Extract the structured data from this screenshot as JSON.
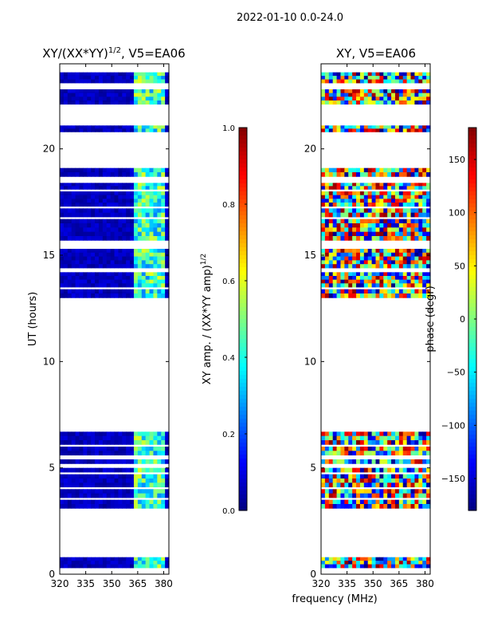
{
  "figure": {
    "suptitle": "2022-01-10 0.0-24.0",
    "xlabel": "frequency (MHz)"
  },
  "chart_data": [
    {
      "type": "heatmap",
      "title_main": "XY/(XX*YY)",
      "title_exp": "1/2",
      "title_tail": ", V5=EA06",
      "ylabel": "UT (hours)",
      "xlim": [
        320,
        383
      ],
      "ylim": [
        0,
        24
      ],
      "x_ticks": [
        320,
        335,
        350,
        365,
        380
      ],
      "y_ticks": [
        0,
        5,
        10,
        15,
        20
      ],
      "colorbar": {
        "label": "XY amp. / (XX*YY amp)",
        "label_exp": "1/2",
        "range": [
          0.0,
          1.0
        ],
        "ticks": [
          "0.0",
          "0.2",
          "0.4",
          "0.6",
          "0.8",
          "1.0"
        ],
        "tick_values": [
          0.0,
          0.2,
          0.4,
          0.6,
          0.8,
          1.0
        ]
      },
      "data_rows_ut": [
        [
          0.3,
          0.8
        ],
        [
          3.1,
          3.5
        ],
        [
          3.6,
          4.0
        ],
        [
          4.1,
          4.7
        ],
        [
          4.8,
          5.0
        ],
        [
          5.2,
          5.4
        ],
        [
          5.6,
          6.0
        ],
        [
          6.1,
          6.7
        ],
        [
          13.0,
          13.4
        ],
        [
          13.5,
          14.2
        ],
        [
          14.4,
          15.3
        ],
        [
          15.7,
          16.7
        ],
        [
          16.8,
          17.2
        ],
        [
          17.3,
          18.0
        ],
        [
          18.1,
          18.4
        ],
        [
          18.7,
          19.1
        ],
        [
          20.8,
          21.1
        ],
        [
          22.1,
          22.8
        ],
        [
          23.1,
          23.6
        ]
      ],
      "note": "amplitude mostly ~0.05 (dark blue); bright band 362-380 MHz ~0.3-0.5"
    },
    {
      "type": "heatmap",
      "title": "XY, V5=EA06",
      "xlim": [
        320,
        383
      ],
      "ylim": [
        0,
        24
      ],
      "x_ticks": [
        320,
        335,
        350,
        365,
        380
      ],
      "y_ticks": [
        0,
        5,
        10,
        15,
        20
      ],
      "colorbar": {
        "label": "phase (degr)",
        "range": [
          -180,
          180
        ],
        "ticks": [
          "150",
          "100",
          "50",
          "0",
          "−50",
          "−100",
          "−150"
        ],
        "tick_values": [
          150,
          100,
          50,
          0,
          -50,
          -100,
          -150
        ]
      },
      "data_rows_ut": [
        [
          0.3,
          0.8
        ],
        [
          3.1,
          3.5
        ],
        [
          3.6,
          4.0
        ],
        [
          4.1,
          4.7
        ],
        [
          4.8,
          5.0
        ],
        [
          5.2,
          5.4
        ],
        [
          5.6,
          6.0
        ],
        [
          6.1,
          6.7
        ],
        [
          13.0,
          13.4
        ],
        [
          13.5,
          14.2
        ],
        [
          14.4,
          15.3
        ],
        [
          15.7,
          16.7
        ],
        [
          16.8,
          17.2
        ],
        [
          17.3,
          18.0
        ],
        [
          18.1,
          18.4
        ],
        [
          18.7,
          19.1
        ],
        [
          20.8,
          21.1
        ],
        [
          22.1,
          22.8
        ],
        [
          23.1,
          23.6
        ]
      ],
      "note": "phase noisy across full -180..180 range"
    }
  ]
}
